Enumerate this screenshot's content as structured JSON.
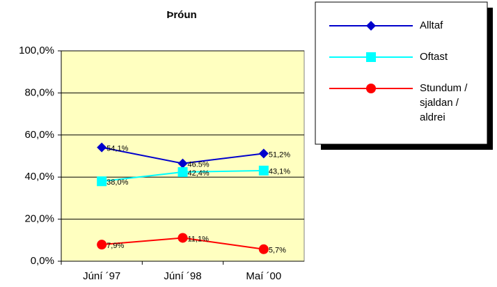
{
  "chart_data": {
    "type": "line",
    "title": "Þróun",
    "categories": [
      "Júní ´97",
      "Júní ´98",
      "Maí ´00"
    ],
    "series": [
      {
        "name": "Alltaf",
        "color": "#0000cc",
        "marker": "diamond",
        "values": [
          54.1,
          46.5,
          51.2
        ],
        "value_labels": [
          "54,1%",
          "46.5%",
          "51,2%"
        ]
      },
      {
        "name": "Oftast",
        "color": "#00ffff",
        "marker": "square",
        "values": [
          38.0,
          42.4,
          43.1
        ],
        "value_labels": [
          "38,0%",
          "42,4%",
          "43,1%"
        ]
      },
      {
        "name": "Stundum / sjaldan / aldrei",
        "color": "#ff0000",
        "marker": "circle",
        "values": [
          7.9,
          11.1,
          5.7
        ],
        "value_labels": [
          "7,9%",
          "11,1%",
          "5,7%"
        ]
      }
    ],
    "ylim": [
      0,
      100
    ],
    "yticks": [
      {
        "value": 0,
        "label": "0,0%"
      },
      {
        "value": 20,
        "label": "20,0%"
      },
      {
        "value": 40,
        "label": "40,0%"
      },
      {
        "value": 60,
        "label": "60,0%"
      },
      {
        "value": 80,
        "label": "80,0%"
      },
      {
        "value": 100,
        "label": "100,0%"
      }
    ],
    "grid": true,
    "legend": "upper right"
  }
}
